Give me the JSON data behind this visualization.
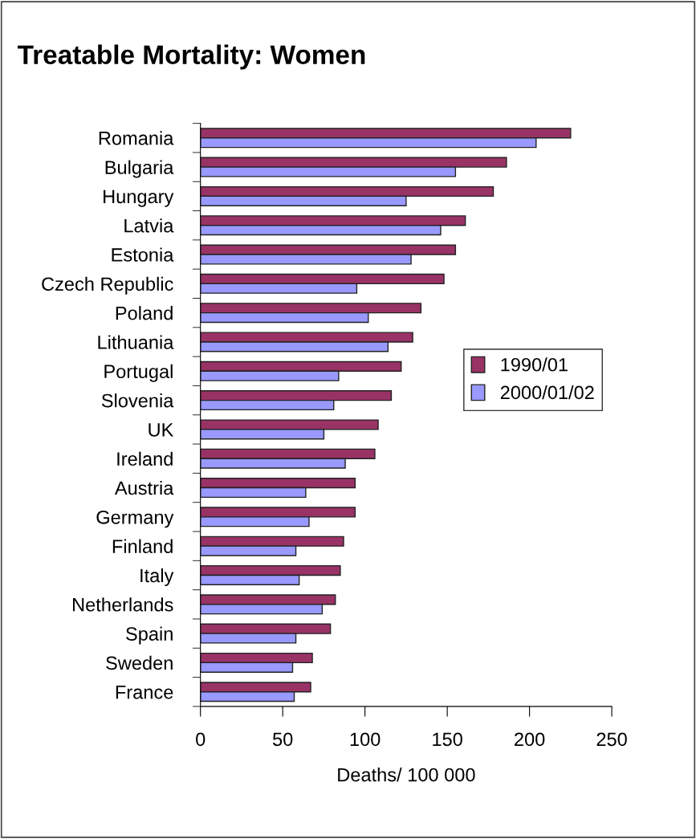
{
  "chart_data": {
    "type": "bar",
    "orientation": "horizontal",
    "title": "Treatable Mortality: Women",
    "xlabel": "Deaths/ 100 000",
    "categories": [
      "Romania",
      "Bulgaria",
      "Hungary",
      "Latvia",
      "Estonia",
      "Czech Republic",
      "Poland",
      "Lithuania",
      "Portugal",
      "Slovenia",
      "UK",
      "Ireland",
      "Austria",
      "Germany",
      "Finland",
      "Italy",
      "Netherlands",
      "Spain",
      "Sweden",
      "France"
    ],
    "series": [
      {
        "name": "1990/01",
        "color": "#993366",
        "values": [
          225,
          186,
          178,
          161,
          155,
          148,
          134,
          129,
          122,
          116,
          108,
          106,
          94,
          94,
          87,
          85,
          82,
          79,
          68,
          67
        ]
      },
      {
        "name": "2000/01/02",
        "color": "#9999ff",
        "values": [
          204,
          155,
          125,
          146,
          128,
          95,
          102,
          114,
          84,
          81,
          75,
          88,
          64,
          66,
          58,
          60,
          74,
          58,
          56,
          57
        ]
      }
    ],
    "xlim": [
      0,
      250
    ],
    "xticks": [
      0,
      50,
      100,
      150,
      200,
      250
    ],
    "grid": false,
    "legend": "right"
  }
}
